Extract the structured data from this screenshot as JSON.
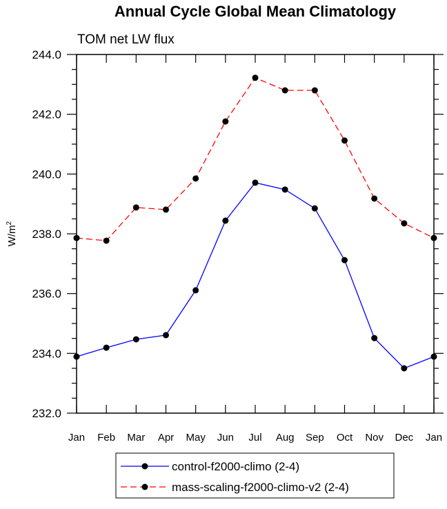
{
  "chart_data": {
    "type": "line",
    "title": "Annual Cycle Global Mean Climatology",
    "subtitle": "TOM net LW flux",
    "ylabel": "W/m",
    "ylabel_sup": "2",
    "xlabel": "",
    "categories": [
      "Jan",
      "Feb",
      "Mar",
      "Apr",
      "May",
      "Jun",
      "Jul",
      "Aug",
      "Sep",
      "Oct",
      "Nov",
      "Dec",
      "Jan"
    ],
    "ylim": [
      232.0,
      244.0
    ],
    "yticks": [
      "232.0",
      "234.0",
      "236.0",
      "238.0",
      "240.0",
      "242.0",
      "244.0"
    ],
    "grid": false,
    "legend_placement": "bottom",
    "series": [
      {
        "name": "control-f2000-climo (2-4)",
        "color": "#0000ff",
        "dash": "solid",
        "values": [
          233.89,
          234.19,
          234.47,
          234.61,
          236.11,
          238.44,
          239.71,
          239.48,
          238.85,
          237.12,
          234.51,
          233.5,
          233.89
        ]
      },
      {
        "name": "mass-scaling-f2000-climo-v2 (2-4)",
        "color": "#ff0000",
        "dash": "dashed",
        "values": [
          237.86,
          237.77,
          238.88,
          238.81,
          239.85,
          241.76,
          243.22,
          242.8,
          242.8,
          241.12,
          239.18,
          238.35,
          237.86
        ]
      }
    ]
  }
}
